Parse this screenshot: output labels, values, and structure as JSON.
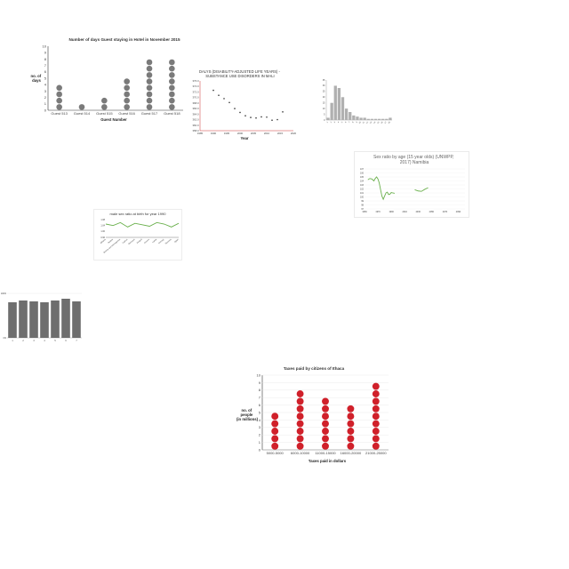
{
  "chart_data": [
    {
      "type": "scatter",
      "title": "Number of days Guest staying in Hotel in November 2015",
      "xlabel": "Guest Number",
      "ylabel": "no. of days",
      "ylim": [
        0,
        10
      ],
      "y_ticks": [
        "0",
        "1",
        "2",
        "3",
        "4",
        "5",
        "6",
        "7",
        "8",
        "9",
        "10"
      ],
      "categories": [
        "Guest 513",
        "Guest 514",
        "Guest 515",
        "Guest 516",
        "Guest 517",
        "Guest 518"
      ],
      "values": [
        4,
        1,
        2,
        5,
        8,
        8
      ],
      "colors": {
        "dot": "#7a7a7a"
      }
    },
    {
      "type": "scatter",
      "title": "DALYS (DISABILITY-ADJUSTED LIFE YEARS) - SUBSTANCE USE DISORDERS IN MALI",
      "xlabel": "Year",
      "ylabel": "",
      "xlim": [
        1985,
        2020
      ],
      "ylim": [
        358,
        376
      ],
      "x_ticks": [
        "1985",
        "1990",
        "1995",
        "2000",
        "2005",
        "2010",
        "2015",
        "2020"
      ],
      "y_ticks": [
        "358.0",
        "360.0",
        "362.0",
        "364.0",
        "366.0",
        "368.0",
        "370.0",
        "372.0",
        "374.0",
        "376.0"
      ],
      "x": [
        1990,
        1992,
        1994,
        1996,
        1998,
        2000,
        2002,
        2004,
        2006,
        2008,
        2010,
        2012,
        2014,
        2016
      ],
      "y": [
        372.6,
        370.8,
        369.6,
        368.2,
        366.0,
        364.6,
        363.4,
        362.8,
        362.6,
        363.0,
        362.9,
        361.8,
        362.0,
        364.8
      ],
      "colors": {
        "point": "#333333",
        "axis": "#cc3333"
      }
    },
    {
      "type": "bar",
      "title": "",
      "xlabel": "",
      "ylabel": "",
      "ylim": [
        0,
        35
      ],
      "y_ticks": [
        "0",
        "5",
        "10",
        "15",
        "20",
        "25",
        "30",
        "35"
      ],
      "categories": [
        "1",
        "2",
        "3",
        "4",
        "5",
        "6",
        "7",
        "8",
        "9",
        "10",
        "11",
        "12",
        "13",
        "14",
        "15",
        "16",
        "17",
        "18"
      ],
      "values": [
        2,
        15,
        30,
        28,
        20,
        10,
        7,
        4,
        3,
        2,
        2,
        1,
        1,
        1,
        1,
        1,
        1,
        2
      ],
      "colors": {
        "bar": "#b0b0b0"
      }
    },
    {
      "type": "line",
      "title": "Sex ratio by age (15 year olds) (UNWPP, 2017) Namibia",
      "xlabel": "",
      "ylabel": "",
      "xlim": [
        1950,
        2100
      ],
      "ylim": [
        97,
        107
      ],
      "x_ticks": [
        "1950",
        "1960",
        "1970",
        "1980",
        "1990",
        "2000",
        "2010",
        "2020",
        "2030",
        "2040",
        "2050",
        "2060",
        "2070",
        "2080",
        "2090",
        "2100"
      ],
      "series": [
        {
          "values": [
            [
              1955,
              104.3
            ],
            [
              1958,
              104.6
            ],
            [
              1961,
              104.5
            ],
            [
              1964,
              104.0
            ],
            [
              1966,
              104.6
            ],
            [
              1968,
              105.0
            ],
            [
              1970,
              104.5
            ],
            [
              1972,
              103.5
            ],
            [
              1974,
              101.8
            ],
            [
              1976,
              100.2
            ],
            [
              1978,
              99.4
            ],
            [
              1980,
              100.2
            ],
            [
              1982,
              101.0
            ],
            [
              1984,
              101.2
            ],
            [
              1986,
              100.6
            ],
            [
              1988,
              100.7
            ],
            [
              1990,
              101.1
            ],
            [
              1992,
              101.0
            ],
            [
              1995,
              100.9
            ]
          ]
        },
        {
          "values": [
            [
              2025,
              101.8
            ],
            [
              2030,
              101.5
            ],
            [
              2035,
              101.4
            ],
            [
              2040,
              101.9
            ],
            [
              2045,
              102.3
            ]
          ]
        }
      ],
      "colors": {
        "line": "#6ab04c"
      }
    },
    {
      "type": "line",
      "title": "male sex ratio at birth for year 1990",
      "xlabel": "",
      "ylabel": "",
      "ylim": [
        0.96,
        1.08
      ],
      "y_ticks": [
        "0.96",
        "1.00",
        "1.04",
        "1.08"
      ],
      "categories": [
        "Albania",
        "Austria",
        "Bosnia and Herzegovina",
        "Cyprus",
        "Denmark",
        "Finland",
        "Greece",
        "Latvia",
        "Norway",
        "Slovenia",
        "Spain"
      ],
      "values": [
        1.05,
        1.04,
        1.06,
        1.03,
        1.055,
        1.045,
        1.035,
        1.06,
        1.05,
        1.03,
        1.055
      ],
      "colors": {
        "line": "#6ab04c"
      }
    },
    {
      "type": "bar",
      "title": "",
      "xlabel": "",
      "ylabel": "",
      "ylim": [
        0,
        100
      ],
      "y_ticks": [
        "0%",
        "100%"
      ],
      "categories": [
        "1",
        "2",
        "3",
        "4",
        "5",
        "6",
        "7"
      ],
      "values": [
        80,
        84,
        82,
        80,
        84,
        88,
        82
      ],
      "colors": {
        "bar": "#6e6e6e"
      }
    },
    {
      "type": "scatter",
      "title": "Taxes paid by citizens of Ithaca",
      "xlabel": "Taxes paid in dollars",
      "ylabel": "no. of people (in millions)",
      "ylim": [
        0,
        10
      ],
      "y_ticks": [
        "0",
        "1",
        "2",
        "3",
        "4",
        "5",
        "6",
        "7",
        "8",
        "9",
        "10"
      ],
      "categories": [
        "5000-5000",
        "6000-10000",
        "11000-15000",
        "16000-20000",
        "21000-25000"
      ],
      "values": [
        5,
        8,
        7,
        6,
        9
      ],
      "colors": {
        "dot": "#d0202a"
      }
    }
  ]
}
